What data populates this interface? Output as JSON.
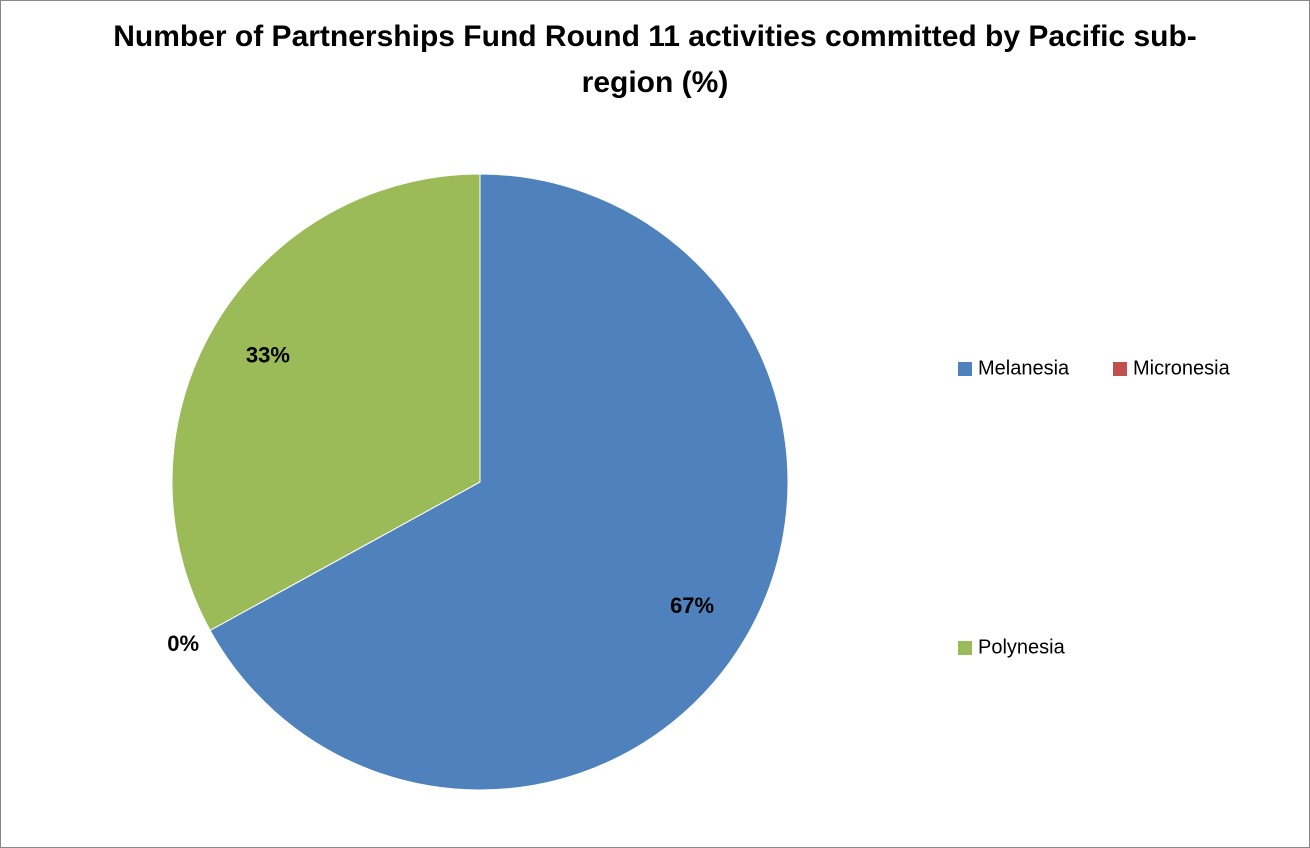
{
  "chart_data": {
    "type": "pie",
    "title": "Number of Partnerships Fund Round 11 activities committed by Pacific sub-region (%)",
    "categories": [
      "Melanesia",
      "Micronesia",
      "Polynesia"
    ],
    "values": [
      67,
      0,
      33
    ],
    "value_labels": [
      "67%",
      "0%",
      "33%"
    ],
    "colors": [
      "#4f81bd",
      "#c0504d",
      "#9bbb59"
    ],
    "legend": "right"
  }
}
